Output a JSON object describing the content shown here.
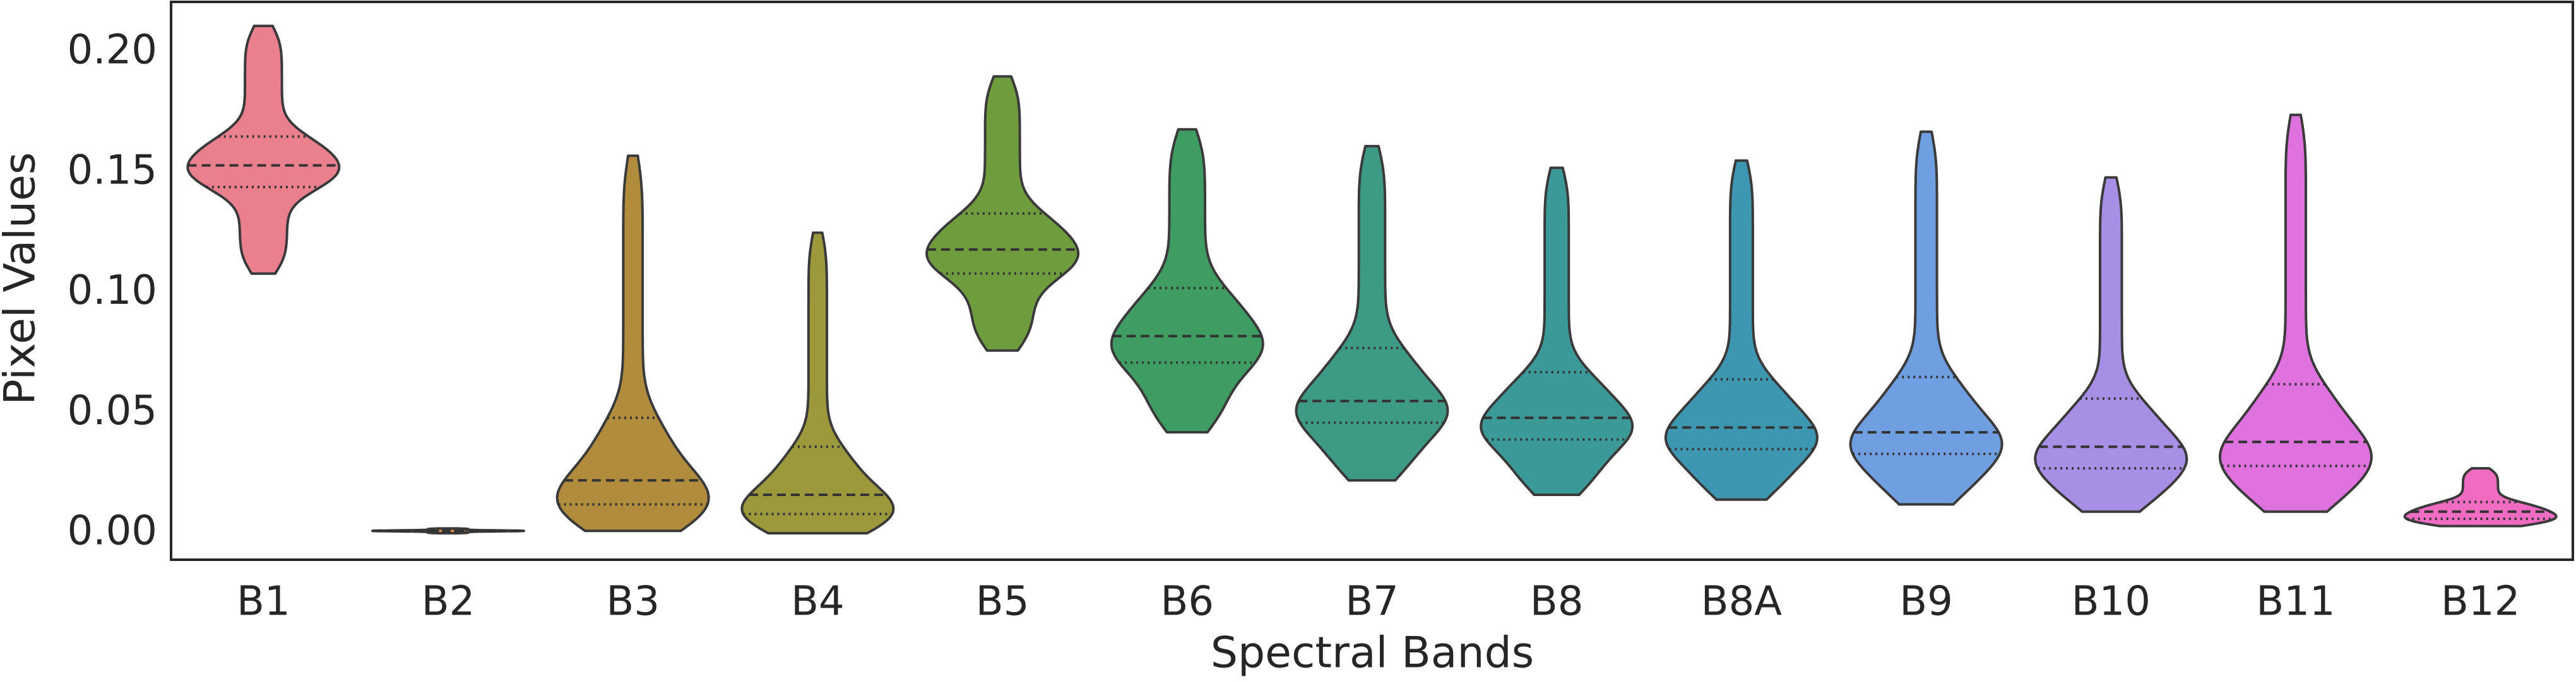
{
  "chart_data": {
    "type": "violin",
    "x_label": "Spectral Bands",
    "y_label": "Pixel Values",
    "categories": [
      "B1",
      "B2",
      "B3",
      "B4",
      "B5",
      "B6",
      "B7",
      "B8",
      "B8A",
      "B9",
      "B10",
      "B11",
      "B12"
    ],
    "colors": [
      "#ea7f8e",
      "#d98d4f",
      "#b18c3c",
      "#9c993c",
      "#6f9c3d",
      "#3f9c63",
      "#3c9a85",
      "#3b9a97",
      "#3d97b0",
      "#6f9fe0",
      "#a88fe6",
      "#e072e0",
      "#ef6cc2"
    ],
    "violins": [
      {
        "min": 0.108,
        "q1": 0.144,
        "median": 0.153,
        "q3": 0.165,
        "max": 0.211
      },
      {
        "min": 0.0,
        "q1": 0.0008,
        "median": 0.001,
        "q3": 0.0012,
        "max": 0.002
      },
      {
        "min": 0.001,
        "q1": 0.012,
        "median": 0.022,
        "q3": 0.048,
        "max": 0.157
      },
      {
        "min": 0.0,
        "q1": 0.008,
        "median": 0.016,
        "q3": 0.036,
        "max": 0.125
      },
      {
        "min": 0.076,
        "q1": 0.108,
        "median": 0.118,
        "q3": 0.133,
        "max": 0.19
      },
      {
        "min": 0.042,
        "q1": 0.071,
        "median": 0.082,
        "q3": 0.102,
        "max": 0.168
      },
      {
        "min": 0.022,
        "q1": 0.046,
        "median": 0.055,
        "q3": 0.077,
        "max": 0.161
      },
      {
        "min": 0.016,
        "q1": 0.039,
        "median": 0.048,
        "q3": 0.067,
        "max": 0.152
      },
      {
        "min": 0.014,
        "q1": 0.035,
        "median": 0.044,
        "q3": 0.064,
        "max": 0.155
      },
      {
        "min": 0.012,
        "q1": 0.033,
        "median": 0.042,
        "q3": 0.065,
        "max": 0.167
      },
      {
        "min": 0.009,
        "q1": 0.027,
        "median": 0.036,
        "q3": 0.056,
        "max": 0.148
      },
      {
        "min": 0.009,
        "q1": 0.028,
        "median": 0.038,
        "q3": 0.062,
        "max": 0.174
      },
      {
        "min": 0.003,
        "q1": 0.006,
        "median": 0.009,
        "q3": 0.013,
        "max": 0.027
      }
    ],
    "ylim": [
      -0.011,
      0.221
    ],
    "yticks": [
      {
        "value": 0,
        "label": "0.00"
      },
      {
        "value": 0.05,
        "label": "0.05"
      },
      {
        "value": 0.1,
        "label": "0.10"
      },
      {
        "value": 0.15,
        "label": "0.15"
      },
      {
        "value": 0.2,
        "label": "0.20"
      }
    ],
    "grid": false
  }
}
